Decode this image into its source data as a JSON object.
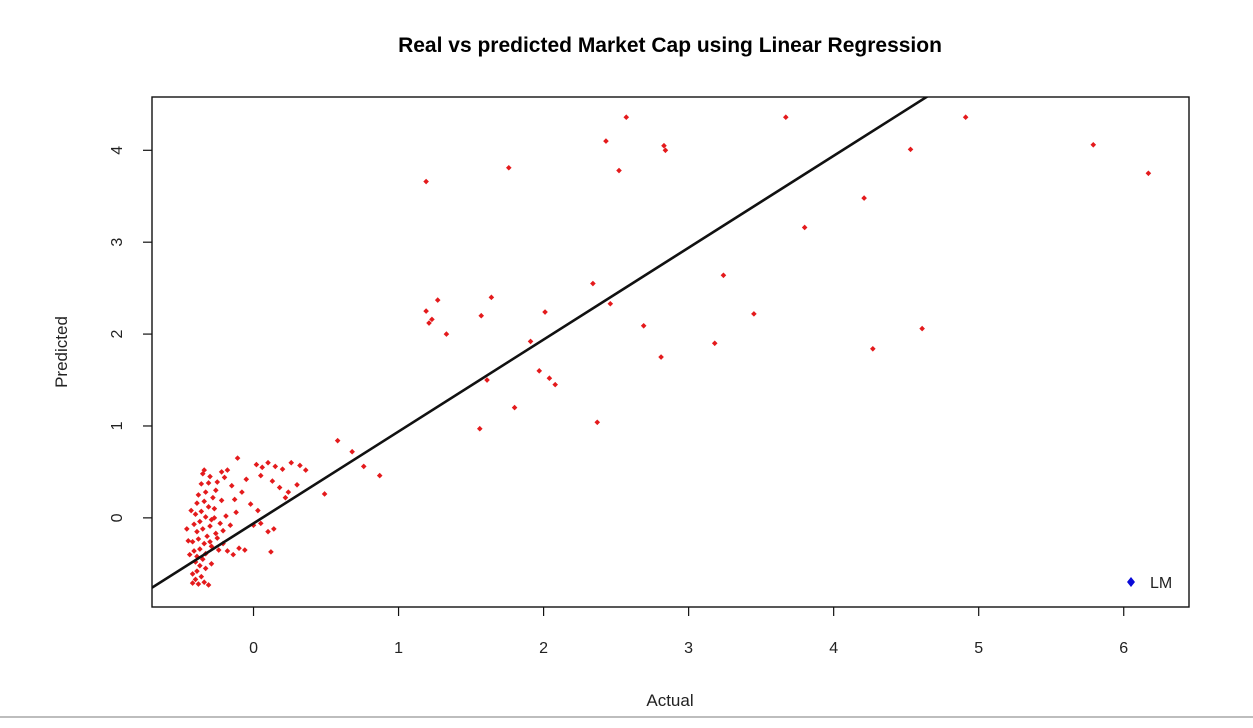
{
  "chart_data": {
    "type": "scatter",
    "title": "Real vs predicted Market Cap using Linear Regression",
    "xlabel": "Actual",
    "ylabel": "Predicted",
    "xlim": [
      -0.7,
      6.45
    ],
    "ylim": [
      -0.97,
      4.58
    ],
    "x_ticks": [
      0,
      1,
      2,
      3,
      4,
      5,
      6
    ],
    "y_ticks": [
      0,
      1,
      2,
      3,
      4
    ],
    "point_color": "#e41a1c",
    "line_color": "#111111",
    "legend": {
      "label": "LM",
      "color": "#0a0ad8",
      "position": "bottom-right"
    },
    "reference_line": {
      "intercept": -0.06,
      "slope": 1.0
    },
    "points": [
      [
        2.57,
        4.36
      ],
      [
        3.67,
        4.36
      ],
      [
        4.91,
        4.36
      ],
      [
        2.43,
        4.1
      ],
      [
        2.83,
        4.05
      ],
      [
        2.84,
        4.0
      ],
      [
        4.53,
        4.01
      ],
      [
        5.79,
        4.06
      ],
      [
        1.76,
        3.81
      ],
      [
        2.52,
        3.78
      ],
      [
        1.19,
        3.66
      ],
      [
        6.17,
        3.75
      ],
      [
        4.21,
        3.48
      ],
      [
        3.8,
        3.16
      ],
      [
        3.24,
        2.64
      ],
      [
        2.34,
        2.55
      ],
      [
        1.64,
        2.4
      ],
      [
        1.27,
        2.37
      ],
      [
        2.46,
        2.33
      ],
      [
        1.19,
        2.25
      ],
      [
        1.23,
        2.16
      ],
      [
        1.21,
        2.12
      ],
      [
        1.57,
        2.2
      ],
      [
        2.01,
        2.24
      ],
      [
        3.45,
        2.22
      ],
      [
        2.69,
        2.09
      ],
      [
        4.61,
        2.06
      ],
      [
        1.33,
        2.0
      ],
      [
        1.91,
        1.92
      ],
      [
        3.18,
        1.9
      ],
      [
        4.27,
        1.84
      ],
      [
        2.81,
        1.75
      ],
      [
        1.97,
        1.6
      ],
      [
        1.61,
        1.5
      ],
      [
        2.04,
        1.52
      ],
      [
        2.08,
        1.45
      ],
      [
        1.8,
        1.2
      ],
      [
        2.37,
        1.04
      ],
      [
        1.56,
        0.97
      ],
      [
        0.58,
        0.84
      ],
      [
        0.68,
        0.72
      ],
      [
        0.76,
        0.56
      ],
      [
        0.87,
        0.46
      ],
      [
        0.49,
        0.26
      ],
      [
        -0.11,
        0.65
      ],
      [
        -0.18,
        0.52
      ],
      [
        -0.22,
        0.5
      ],
      [
        -0.34,
        0.52
      ],
      [
        -0.35,
        0.48
      ],
      [
        -0.3,
        0.45
      ],
      [
        -0.2,
        0.44
      ],
      [
        -0.25,
        0.39
      ],
      [
        -0.31,
        0.38
      ],
      [
        -0.36,
        0.37
      ],
      [
        -0.15,
        0.35
      ],
      [
        -0.26,
        0.3
      ],
      [
        -0.33,
        0.28
      ],
      [
        -0.38,
        0.25
      ],
      [
        -0.28,
        0.22
      ],
      [
        -0.22,
        0.19
      ],
      [
        -0.34,
        0.18
      ],
      [
        -0.39,
        0.16
      ],
      [
        -0.31,
        0.12
      ],
      [
        -0.27,
        0.1
      ],
      [
        -0.36,
        0.07
      ],
      [
        -0.4,
        0.04
      ],
      [
        -0.33,
        0.01
      ],
      [
        -0.29,
        -0.02
      ],
      [
        -0.37,
        -0.04
      ],
      [
        -0.41,
        -0.07
      ],
      [
        -0.3,
        -0.09
      ],
      [
        -0.35,
        -0.12
      ],
      [
        -0.39,
        -0.15
      ],
      [
        -0.26,
        -0.17
      ],
      [
        -0.32,
        -0.2
      ],
      [
        -0.38,
        -0.23
      ],
      [
        -0.42,
        -0.26
      ],
      [
        -0.34,
        -0.28
      ],
      [
        -0.29,
        -0.31
      ],
      [
        -0.37,
        -0.34
      ],
      [
        -0.41,
        -0.36
      ],
      [
        -0.33,
        -0.39
      ],
      [
        -0.39,
        -0.42
      ],
      [
        -0.35,
        -0.45
      ],
      [
        -0.4,
        -0.48
      ],
      [
        -0.37,
        -0.52
      ],
      [
        -0.33,
        -0.55
      ],
      [
        -0.39,
        -0.58
      ],
      [
        -0.42,
        -0.61
      ],
      [
        -0.36,
        -0.64
      ],
      [
        -0.4,
        -0.67
      ],
      [
        -0.34,
        -0.7
      ],
      [
        -0.38,
        -0.72
      ],
      [
        -0.31,
        -0.73
      ],
      [
        -0.42,
        -0.71
      ],
      [
        -0.29,
        -0.5
      ],
      [
        -0.44,
        -0.4
      ],
      [
        -0.45,
        -0.25
      ],
      [
        -0.46,
        -0.12
      ],
      [
        -0.43,
        0.08
      ],
      [
        -0.24,
        -0.35
      ],
      [
        -0.21,
        -0.28
      ],
      [
        -0.18,
        -0.36
      ],
      [
        -0.14,
        -0.4
      ],
      [
        -0.1,
        -0.33
      ],
      [
        -0.06,
        -0.35
      ],
      [
        -0.23,
        -0.06
      ],
      [
        -0.19,
        0.02
      ],
      [
        -0.16,
        -0.08
      ],
      [
        -0.12,
        0.06
      ],
      [
        -0.27,
        0.0
      ],
      [
        -0.25,
        -0.22
      ],
      [
        -0.3,
        -0.26
      ],
      [
        -0.21,
        -0.14
      ],
      [
        0.02,
        0.58
      ],
      [
        0.06,
        0.55
      ],
      [
        0.1,
        0.6
      ],
      [
        0.15,
        0.56
      ],
      [
        0.2,
        0.53
      ],
      [
        0.26,
        0.6
      ],
      [
        0.32,
        0.57
      ],
      [
        0.36,
        0.52
      ],
      [
        0.05,
        0.46
      ],
      [
        0.13,
        0.4
      ],
      [
        0.18,
        0.33
      ],
      [
        0.24,
        0.28
      ],
      [
        0.3,
        0.36
      ],
      [
        0.22,
        0.22
      ],
      [
        0.03,
        0.08
      ],
      [
        0.0,
        -0.08
      ],
      [
        0.05,
        -0.06
      ],
      [
        0.1,
        -0.15
      ],
      [
        0.14,
        -0.12
      ],
      [
        0.12,
        -0.37
      ],
      [
        -0.05,
        0.42
      ],
      [
        -0.08,
        0.28
      ],
      [
        -0.13,
        0.2
      ],
      [
        -0.02,
        0.15
      ]
    ]
  }
}
